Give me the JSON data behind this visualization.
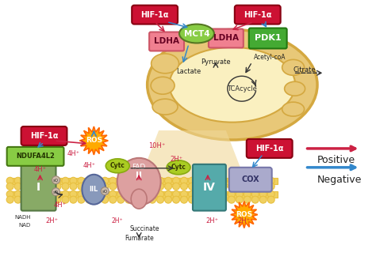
{
  "bg_color": "#ffffff",
  "hif_color": "#CC1133",
  "hif_text": "HIF-1α",
  "ldha_color": "#F08090",
  "ldha_text": "LDHA",
  "mct4_color": "#88CC44",
  "mct4_text": "MCT4",
  "pdk1_color": "#44AA33",
  "pdk1_text": "PDK1",
  "ndufa_color": "#88CC44",
  "ndufa_text": "NDUFA4L2",
  "complex_I_color": "#88AA66",
  "complex_II_color": "#CC9999",
  "complex_IIL_color": "#8899BB",
  "complex_IV_color": "#55AAAA",
  "cox_color": "#AAAACC",
  "cytc_color": "#AACC22",
  "ros_color": "#FF8800",
  "mito_outer": "#D4A840",
  "mito_fill": "#E8C878",
  "mito_inner": "#FAF0C0",
  "mem_color": "#E8C040",
  "mem_fill": "#F0D060",
  "cone_color": "#F0D898",
  "positive_color": "#CC2244",
  "negative_color": "#3388CC",
  "dark_arrow": "#333333",
  "pos_label": "Positive",
  "neg_label": "Negative"
}
